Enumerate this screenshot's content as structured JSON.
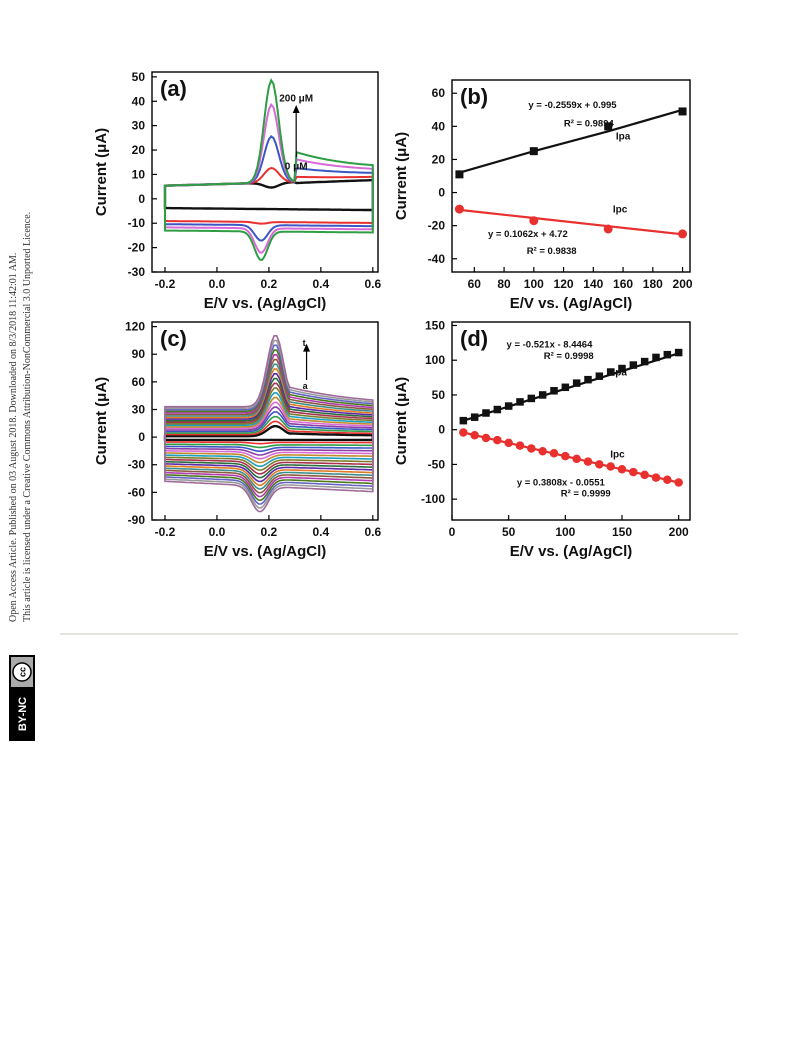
{
  "sidebar": {
    "line1": "Open Access Article. Published on 03 August 2018. Downloaded on 8/3/2018 11:42:01 AM.",
    "line2": "This article is licensed under a Creative Commons Attribution-NonCommercial 3.0 Unported Licence.",
    "badge_cc": "cc",
    "badge_text": "BY-NC"
  },
  "colors": {
    "black": "#111111",
    "red": "#e8302e",
    "green": "#2e9e44",
    "blue": "#3a57c4",
    "purple": "#8a3fa6",
    "pink": "#d86ad8",
    "rule": "#e6e5dc"
  },
  "chart_data": [
    {
      "panel": "(a)",
      "type": "line",
      "xlabel": "E/V vs. (Ag/AgCl)",
      "ylabel": "Current (μA)",
      "xlim": [
        -0.25,
        0.62
      ],
      "ylim": [
        -30,
        52
      ],
      "xticks": [
        -0.2,
        0.0,
        0.2,
        0.4,
        0.6
      ],
      "xtick_labels": [
        "-0.2",
        "0.0",
        "0.2",
        "0.4",
        "0.6"
      ],
      "yticks": [
        -30,
        -20,
        -10,
        0,
        10,
        20,
        30,
        40,
        50
      ],
      "ytick_labels": [
        "-30",
        "-20",
        "-10",
        "0",
        "10",
        "20",
        "30",
        "40",
        "50"
      ],
      "annotations": [
        "200 μM",
        "0 μM"
      ],
      "series": [
        {
          "color": "#111111",
          "anodic_peak": 0,
          "cathodic_peak": 0
        },
        {
          "color": "#e8302e",
          "anodic_peak": 12,
          "cathodic_peak": -10
        },
        {
          "color": "#3a57c4",
          "anodic_peak": 25,
          "cathodic_peak": -17
        },
        {
          "color": "#d86ad8",
          "anodic_peak": 38,
          "cathodic_peak": -22
        },
        {
          "color": "#2e9e44",
          "anodic_peak": 48,
          "cathodic_peak": -25
        }
      ]
    },
    {
      "panel": "(b)",
      "type": "scatter",
      "xlabel": "E/V vs. (Ag/AgCl)",
      "ylabel": "Current (μA)",
      "xlim": [
        45,
        205
      ],
      "ylim": [
        -48,
        68
      ],
      "xticks": [
        60,
        80,
        100,
        120,
        140,
        160,
        180,
        200
      ],
      "xtick_labels": [
        "60",
        "80",
        "100",
        "120",
        "140",
        "160",
        "180",
        "200"
      ],
      "yticks": [
        -40,
        -20,
        0,
        20,
        40,
        60
      ],
      "ytick_labels": [
        "-40",
        "-20",
        "0",
        "20",
        "40",
        "60"
      ],
      "series": [
        {
          "name": "Ipa",
          "color": "#111111",
          "marker": "square",
          "x": [
            50,
            100,
            150,
            200
          ],
          "y": [
            11,
            25,
            40,
            49
          ],
          "fit_y": [
            12,
            25,
            37,
            50
          ],
          "equation": "y = -0.2559x + 0.995",
          "r2": "R² = 0.9894"
        },
        {
          "name": "Ipc",
          "color": "#e8302e",
          "marker": "circle",
          "x": [
            50,
            100,
            150,
            200
          ],
          "y": [
            -10,
            -17,
            -22,
            -25
          ],
          "fit_y": [
            -10.5,
            -15.4,
            -20.3,
            -25.2
          ],
          "equation": "y = 0.1062x + 4.72",
          "r2": "R² = 0.9838"
        }
      ]
    },
    {
      "panel": "(c)",
      "type": "line",
      "xlabel": "E/V vs. (Ag/AgCl)",
      "ylabel": "Current (μA)",
      "xlim": [
        -0.25,
        0.62
      ],
      "ylim": [
        -90,
        125
      ],
      "xticks": [
        -0.2,
        0.0,
        0.2,
        0.4,
        0.6
      ],
      "xtick_labels": [
        "-0.2",
        "0.0",
        "0.2",
        "0.4",
        "0.6"
      ],
      "yticks": [
        -90,
        -60,
        -30,
        0,
        30,
        60,
        90,
        120
      ],
      "ytick_labels": [
        "-90",
        "-60",
        "-30",
        "0",
        "30",
        "60",
        "90",
        "120"
      ],
      "annotations": [
        "t",
        "a"
      ],
      "curve_count": 20,
      "anodic_peak_range": [
        12,
        111
      ],
      "cathodic_peak_range": [
        -3,
        -76
      ]
    },
    {
      "panel": "(d)",
      "type": "scatter",
      "xlabel": "E/V vs. (Ag/AgCl)",
      "ylabel": "Current (μA)",
      "xlim": [
        0,
        210
      ],
      "ylim": [
        -130,
        155
      ],
      "xticks": [
        0,
        50,
        100,
        150,
        200
      ],
      "xtick_labels": [
        "0",
        "50",
        "100",
        "150",
        "200"
      ],
      "yticks": [
        -100,
        -50,
        0,
        50,
        100,
        150
      ],
      "ytick_labels": [
        "-100",
        "-50",
        "0",
        "50",
        "100",
        "150"
      ],
      "series": [
        {
          "name": "Ipa",
          "color": "#111111",
          "marker": "square",
          "x": [
            10,
            20,
            30,
            40,
            50,
            60,
            70,
            80,
            90,
            100,
            110,
            120,
            130,
            140,
            150,
            160,
            170,
            180,
            190,
            200
          ],
          "y": [
            13,
            18,
            24,
            29,
            34,
            40,
            45,
            50,
            56,
            61,
            67,
            72,
            77,
            83,
            88,
            93,
            98,
            104,
            108,
            111
          ],
          "fit_y": [
            13,
            110
          ],
          "equation": "y = -0.521x - 8.4464",
          "r2": "R² = 0.9998"
        },
        {
          "name": "Ipc",
          "color": "#e8302e",
          "marker": "circle",
          "x": [
            10,
            20,
            30,
            40,
            50,
            60,
            70,
            80,
            90,
            100,
            110,
            120,
            130,
            140,
            150,
            160,
            170,
            180,
            190,
            200
          ],
          "y": [
            -4,
            -8,
            -12,
            -15,
            -19,
            -23,
            -27,
            -31,
            -34,
            -38,
            -42,
            -46,
            -50,
            -53,
            -57,
            -61,
            -65,
            -69,
            -72,
            -76
          ],
          "fit_y": [
            -4,
            -76
          ],
          "equation": "y = 0.3808x - 0.0551",
          "r2": "R² = 0.9999"
        }
      ]
    }
  ]
}
